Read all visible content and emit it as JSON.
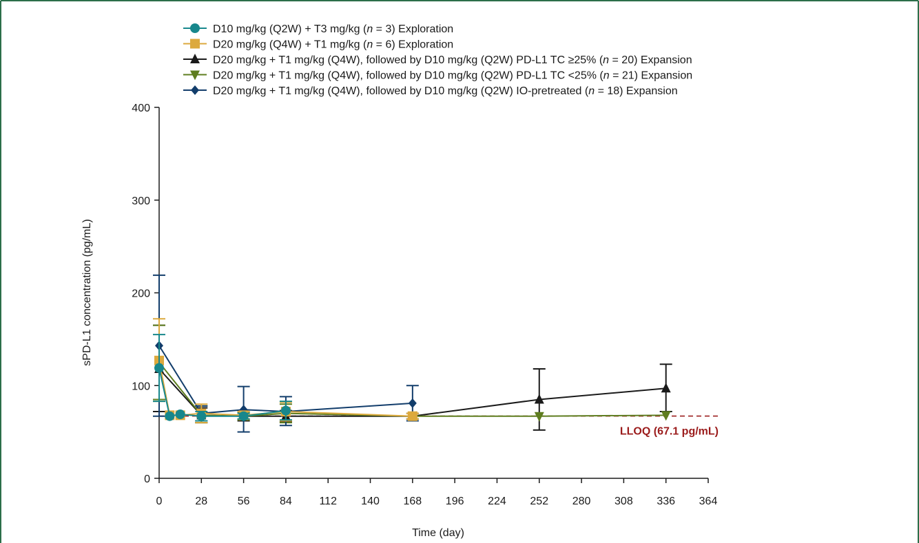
{
  "chart_data": {
    "type": "line",
    "xlabel": "Time (day)",
    "ylabel": "sPD-L1 concentration (pg/mL)",
    "xlim": [
      0,
      364
    ],
    "ylim": [
      0,
      400
    ],
    "xticks": [
      0,
      28,
      56,
      84,
      112,
      140,
      168,
      196,
      224,
      252,
      280,
      308,
      336,
      364
    ],
    "yticks": [
      0,
      100,
      200,
      300,
      400
    ],
    "legend_position": "top",
    "grid": false,
    "reference_line": {
      "label": "LLOQ  (67.1 pg/mL)",
      "value": 67.1,
      "color": "#9b1c1c"
    },
    "series": [
      {
        "name": "D10 mg/kg (Q2W) + T3 mg/kg (n = 3) Exploration",
        "legend_parts": [
          [
            "D10 mg/kg (Q2W) + T3 mg/kg (",
            false
          ],
          [
            "n",
            true
          ],
          [
            " = 3) Exploration",
            false
          ]
        ],
        "marker": "circle",
        "color": "#17878c",
        "order": 4,
        "points": [
          {
            "x": 0,
            "y": 119,
            "lo": 83,
            "hi": 155
          },
          {
            "x": 7,
            "y": 67
          },
          {
            "x": 14,
            "y": 69
          },
          {
            "x": 28,
            "y": 67,
            "lo": 62,
            "hi": 72
          },
          {
            "x": 56,
            "y": 67,
            "lo": 64,
            "hi": 70
          },
          {
            "x": 84,
            "y": 73,
            "lo": 63,
            "hi": 83
          }
        ]
      },
      {
        "name": "D20 mg/kg (Q4W) + T1 mg/kg (n = 6) Exploration",
        "legend_parts": [
          [
            "D20 mg/kg (Q4W) + T1 mg/kg (",
            false
          ],
          [
            "n",
            true
          ],
          [
            " = 6) Exploration",
            false
          ]
        ],
        "marker": "square",
        "color": "#dca93d",
        "order": 3,
        "points": [
          {
            "x": 0,
            "y": 127,
            "lo": 83,
            "hi": 172
          },
          {
            "x": 7,
            "y": 68
          },
          {
            "x": 14,
            "y": 68
          },
          {
            "x": 28,
            "y": 70,
            "lo": 60,
            "hi": 80
          },
          {
            "x": 56,
            "y": 68,
            "lo": 64,
            "hi": 72
          },
          {
            "x": 84,
            "y": 72,
            "lo": 62,
            "hi": 82
          },
          {
            "x": 168,
            "y": 67,
            "lo": 64,
            "hi": 70
          }
        ]
      },
      {
        "name": "D20 mg/kg + T1 mg/kg (Q4W), followed by D10 mg/kg (Q2W) PD-L1 TC ≥25% (n = 20) Expansion",
        "legend_parts": [
          [
            "D20 mg/kg + T1 mg/kg (Q4W), followed by D10 mg/kg (Q2W) PD-L1 TC ≥25% (",
            false
          ],
          [
            "n",
            true
          ],
          [
            " = 20) Expansion",
            false
          ]
        ],
        "marker": "triangle-up",
        "color": "#1a1a1a",
        "order": 0,
        "points": [
          {
            "x": 0,
            "y": 118,
            "lo": 72,
            "hi": 165
          },
          {
            "x": 28,
            "y": 68,
            "lo": 60,
            "hi": 76
          },
          {
            "x": 56,
            "y": 67,
            "lo": 62,
            "hi": 72
          },
          {
            "x": 84,
            "y": 67,
            "lo": 61,
            "hi": 73
          },
          {
            "x": 168,
            "y": 67,
            "lo": 64,
            "hi": 70
          },
          {
            "x": 252,
            "y": 85,
            "lo": 52,
            "hi": 118
          },
          {
            "x": 336,
            "y": 97,
            "lo": 72,
            "hi": 123
          }
        ]
      },
      {
        "name": "D20 mg/kg + T1 mg/kg (Q4W), followed by D10 mg/kg (Q2W) PD-L1 TC <25% (n = 21) Expansion",
        "legend_parts": [
          [
            "D20 mg/kg + T1 mg/kg (Q4W), followed by D10 mg/kg (Q2W) PD-L1 TC <25% (",
            false
          ],
          [
            "n",
            true
          ],
          [
            " = 21) Expansion",
            false
          ]
        ],
        "marker": "triangle-down",
        "color": "#5e7d1f",
        "order": 1,
        "points": [
          {
            "x": 0,
            "y": 125,
            "lo": 85,
            "hi": 165
          },
          {
            "x": 28,
            "y": 68,
            "lo": 60,
            "hi": 78
          },
          {
            "x": 56,
            "y": 67,
            "lo": 63,
            "hi": 71
          },
          {
            "x": 84,
            "y": 70,
            "lo": 60,
            "hi": 80
          },
          {
            "x": 168,
            "y": 67
          },
          {
            "x": 252,
            "y": 67
          },
          {
            "x": 336,
            "y": 68
          }
        ]
      },
      {
        "name": "D20 mg/kg + T1 mg/kg (Q4W), followed by D10 mg/kg (Q2W) IO-pretreated (n = 18) Expansion",
        "legend_parts": [
          [
            "D20 mg/kg + T1 mg/kg (Q4W), followed by D10 mg/kg (Q2W) IO-pretreated (",
            false
          ],
          [
            "n",
            true
          ],
          [
            " = 18) Expansion",
            false
          ]
        ],
        "marker": "diamond",
        "color": "#123d6b",
        "order": 2,
        "points": [
          {
            "x": 0,
            "y": 143,
            "lo": 67,
            "hi": 219
          },
          {
            "x": 28,
            "y": 70,
            "lo": 62,
            "hi": 78
          },
          {
            "x": 56,
            "y": 74,
            "lo": 50,
            "hi": 99
          },
          {
            "x": 84,
            "y": 72,
            "lo": 57,
            "hi": 88
          },
          {
            "x": 168,
            "y": 81,
            "lo": 62,
            "hi": 100
          }
        ]
      }
    ]
  }
}
